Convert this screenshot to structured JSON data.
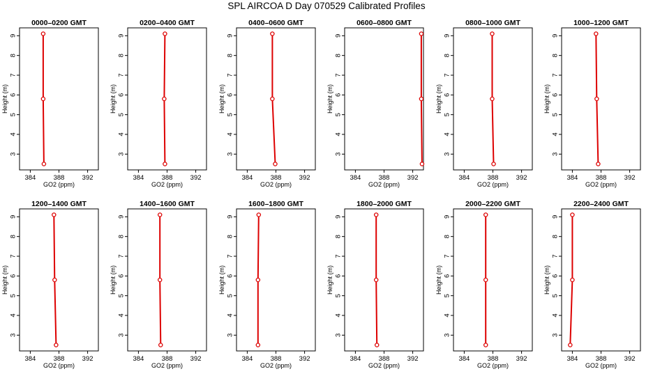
{
  "title": "SPL AIRCOA D  Day 070529  Calibrated Profiles",
  "colors": {
    "profile": "#dd0000",
    "axes": "#000000"
  },
  "chart_data": [
    {
      "type": "line",
      "title": "0000–0200 GMT",
      "xlabel": "GO2 (ppm)",
      "ylabel": "Height (m)",
      "xlim": [
        382.5,
        393.5
      ],
      "ylim": [
        2.2,
        9.4
      ],
      "xticks": [
        384,
        388,
        392
      ],
      "yticks": [
        3,
        4,
        5,
        6,
        7,
        8,
        9
      ],
      "grid": false,
      "series": [
        {
          "x": [
            385.9,
            385.8,
            385.8
          ],
          "y": [
            2.5,
            5.8,
            9.1
          ]
        }
      ]
    },
    {
      "type": "line",
      "title": "0200–0400 GMT",
      "xlabel": "GO2 (ppm)",
      "ylabel": "Height (m)",
      "xlim": [
        382.5,
        393.5
      ],
      "ylim": [
        2.2,
        9.4
      ],
      "xticks": [
        384,
        388,
        392
      ],
      "yticks": [
        3,
        4,
        5,
        6,
        7,
        8,
        9
      ],
      "grid": false,
      "series": [
        {
          "x": [
            387.7,
            387.6,
            387.7
          ],
          "y": [
            2.5,
            5.8,
            9.1
          ]
        }
      ]
    },
    {
      "type": "line",
      "title": "0400–0600 GMT",
      "xlabel": "GO2 (ppm)",
      "ylabel": "Height (m)",
      "xlim": [
        382.5,
        393.5
      ],
      "ylim": [
        2.2,
        9.4
      ],
      "xticks": [
        384,
        388,
        392
      ],
      "yticks": [
        3,
        4,
        5,
        6,
        7,
        8,
        9
      ],
      "grid": false,
      "series": [
        {
          "x": [
            387.9,
            387.5,
            387.5
          ],
          "y": [
            2.5,
            5.8,
            9.1
          ]
        }
      ]
    },
    {
      "type": "line",
      "title": "0600–0800 GMT",
      "xlabel": "GO2 (ppm)",
      "ylabel": "Height (m)",
      "xlim": [
        382.5,
        393.5
      ],
      "ylim": [
        2.2,
        9.4
      ],
      "xticks": [
        384,
        388,
        392
      ],
      "yticks": [
        3,
        4,
        5,
        6,
        7,
        8,
        9
      ],
      "grid": false,
      "series": [
        {
          "x": [
            393.3,
            393.2,
            393.2
          ],
          "y": [
            2.5,
            5.8,
            9.1
          ]
        }
      ]
    },
    {
      "type": "line",
      "title": "0800–1000 GMT",
      "xlabel": "GO2 (ppm)",
      "ylabel": "Height (m)",
      "xlim": [
        382.5,
        393.5
      ],
      "ylim": [
        2.2,
        9.4
      ],
      "xticks": [
        384,
        388,
        392
      ],
      "yticks": [
        3,
        4,
        5,
        6,
        7,
        8,
        9
      ],
      "grid": false,
      "series": [
        {
          "x": [
            388.1,
            387.9,
            387.9
          ],
          "y": [
            2.5,
            5.8,
            9.1
          ]
        }
      ]
    },
    {
      "type": "line",
      "title": "1000–1200 GMT",
      "xlabel": "GO2 (ppm)",
      "ylabel": "Height (m)",
      "xlim": [
        382.5,
        393.5
      ],
      "ylim": [
        2.2,
        9.4
      ],
      "xticks": [
        384,
        388,
        392
      ],
      "yticks": [
        3,
        4,
        5,
        6,
        7,
        8,
        9
      ],
      "grid": false,
      "series": [
        {
          "x": [
            387.6,
            387.4,
            387.3
          ],
          "y": [
            2.5,
            5.8,
            9.1
          ]
        }
      ]
    },
    {
      "type": "line",
      "title": "1200–1400 GMT",
      "xlabel": "GO2 (ppm)",
      "ylabel": "Height (m)",
      "xlim": [
        382.5,
        393.5
      ],
      "ylim": [
        2.2,
        9.4
      ],
      "xticks": [
        384,
        388,
        392
      ],
      "yticks": [
        3,
        4,
        5,
        6,
        7,
        8,
        9
      ],
      "grid": false,
      "series": [
        {
          "x": [
            387.6,
            387.4,
            387.3
          ],
          "y": [
            2.5,
            5.8,
            9.1
          ]
        }
      ]
    },
    {
      "type": "line",
      "title": "1400–1600 GMT",
      "xlabel": "GO2 (ppm)",
      "ylabel": "Height (m)",
      "xlim": [
        382.5,
        393.5
      ],
      "ylim": [
        2.2,
        9.4
      ],
      "xticks": [
        384,
        388,
        392
      ],
      "yticks": [
        3,
        4,
        5,
        6,
        7,
        8,
        9
      ],
      "grid": false,
      "series": [
        {
          "x": [
            387.1,
            387.0,
            387.0
          ],
          "y": [
            2.5,
            5.8,
            9.1
          ]
        }
      ]
    },
    {
      "type": "line",
      "title": "1600–1800 GMT",
      "xlabel": "GO2 (ppm)",
      "ylabel": "Height (m)",
      "xlim": [
        382.5,
        393.5
      ],
      "ylim": [
        2.2,
        9.4
      ],
      "xticks": [
        384,
        388,
        392
      ],
      "yticks": [
        3,
        4,
        5,
        6,
        7,
        8,
        9
      ],
      "grid": false,
      "series": [
        {
          "x": [
            385.5,
            385.5,
            385.6
          ],
          "y": [
            2.5,
            5.8,
            9.1
          ]
        }
      ]
    },
    {
      "type": "line",
      "title": "1800–2000 GMT",
      "xlabel": "GO2 (ppm)",
      "ylabel": "Height (m)",
      "xlim": [
        382.5,
        393.5
      ],
      "ylim": [
        2.2,
        9.4
      ],
      "xticks": [
        384,
        388,
        392
      ],
      "yticks": [
        3,
        4,
        5,
        6,
        7,
        8,
        9
      ],
      "grid": false,
      "series": [
        {
          "x": [
            387.0,
            386.9,
            386.9
          ],
          "y": [
            2.5,
            5.8,
            9.1
          ]
        }
      ]
    },
    {
      "type": "line",
      "title": "2000–2200 GMT",
      "xlabel": "GO2 (ppm)",
      "ylabel": "Height (m)",
      "xlim": [
        382.5,
        393.5
      ],
      "ylim": [
        2.2,
        9.4
      ],
      "xticks": [
        384,
        388,
        392
      ],
      "yticks": [
        3,
        4,
        5,
        6,
        7,
        8,
        9
      ],
      "grid": false,
      "series": [
        {
          "x": [
            387.0,
            387.0,
            387.0
          ],
          "y": [
            2.5,
            5.8,
            9.1
          ]
        }
      ]
    },
    {
      "type": "line",
      "title": "2200–2400 GMT",
      "xlabel": "GO2 (ppm)",
      "ylabel": "Height (m)",
      "xlim": [
        382.5,
        393.5
      ],
      "ylim": [
        2.2,
        9.4
      ],
      "xticks": [
        384,
        388,
        392
      ],
      "yticks": [
        3,
        4,
        5,
        6,
        7,
        8,
        9
      ],
      "grid": false,
      "series": [
        {
          "x": [
            383.7,
            384.0,
            384.0
          ],
          "y": [
            2.5,
            5.8,
            9.1
          ]
        }
      ]
    }
  ]
}
